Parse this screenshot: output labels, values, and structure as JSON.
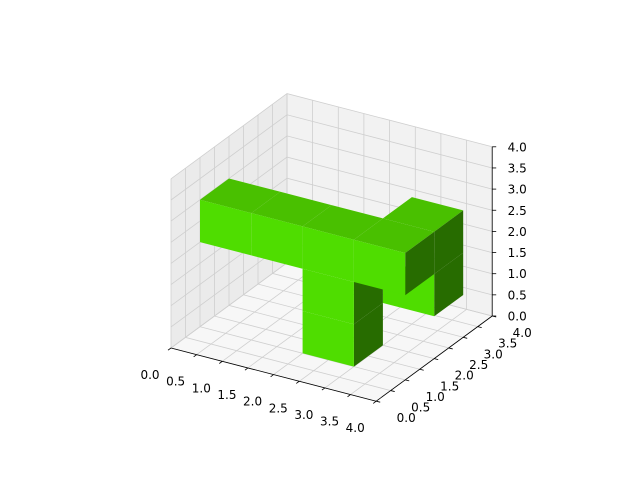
{
  "chart_data": {
    "type": "voxel",
    "projection": "3d",
    "xlim": [
      0,
      4
    ],
    "ylim": [
      0,
      4
    ],
    "zlim": [
      0,
      4
    ],
    "x_ticks": [
      "0.0",
      "0.5",
      "1.0",
      "1.5",
      "2.0",
      "2.5",
      "3.0",
      "3.5",
      "4.0"
    ],
    "y_ticks": [
      "0.0",
      "0.5",
      "1.0",
      "1.5",
      "2.0",
      "2.5",
      "3.0",
      "3.5",
      "4.0"
    ],
    "z_ticks": [
      "0.0",
      "0.5",
      "1.0",
      "1.5",
      "2.0",
      "2.5",
      "3.0",
      "3.5",
      "4.0"
    ],
    "grid": true,
    "title": "",
    "xlabel": "",
    "ylabel": "",
    "zlabel": "",
    "colors": {
      "voxel_face": "#4fdd00",
      "voxel_top": "#49c000",
      "voxel_side": "#276c00",
      "pane_left": "#ebebeb",
      "pane_back": "#f2f2f2",
      "pane_floor": "#f7f7f7",
      "grid": "#cfcfcf"
    },
    "voxels": [
      {
        "x": 0,
        "y": 1,
        "z": 2
      },
      {
        "x": 1,
        "y": 1,
        "z": 2
      },
      {
        "x": 2,
        "y": 1,
        "z": 2
      },
      {
        "x": 3,
        "y": 1,
        "z": 2
      },
      {
        "x": 2,
        "y": 1,
        "z": 1
      },
      {
        "x": 2,
        "y": 1,
        "z": 0
      },
      {
        "x": 3,
        "y": 2,
        "z": 2
      },
      {
        "x": 3,
        "y": 2,
        "z": 1
      }
    ]
  }
}
